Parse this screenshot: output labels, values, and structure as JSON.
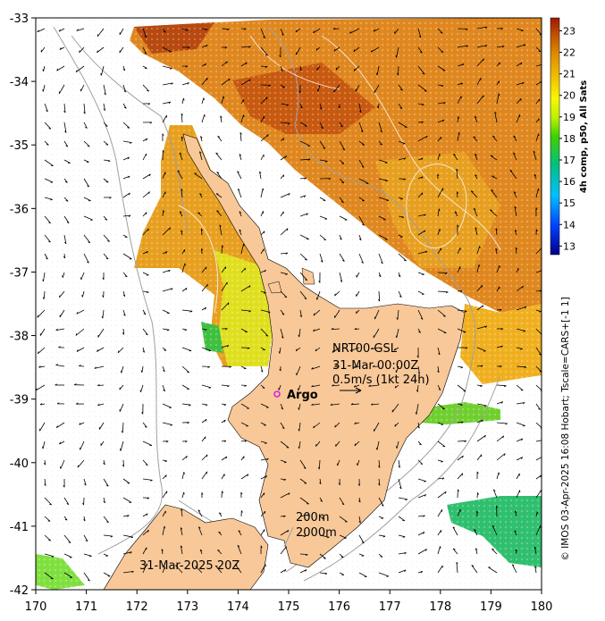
{
  "map": {
    "x_ticks": [
      "170",
      "171",
      "172",
      "173",
      "174",
      "175",
      "176",
      "177",
      "178",
      "179",
      "180"
    ],
    "y_ticks": [
      "-33",
      "-34",
      "-35",
      "-36",
      "-37",
      "-38",
      "-39",
      "-40",
      "-41",
      "-42"
    ],
    "lon_range": [
      170,
      180
    ],
    "lat_range": [
      -33,
      -42
    ],
    "bathymetry_labels": [
      "200m",
      "2000m"
    ],
    "product_label": [
      "NRT00 GSL",
      "31-Mar 00:00Z",
      "0.5m/s (1kt 24h)"
    ],
    "argo_label": "Argo",
    "argo_position": {
      "lon": 174.75,
      "lat": -38.9
    },
    "date_label": "31-Mar-2025 20Z",
    "colors": {
      "land": "#f8c898",
      "argo_marker": "#e020e0",
      "bathy_line": "#a0a0a0"
    }
  },
  "colorbar": {
    "ticks": [
      "13",
      "14",
      "15",
      "16",
      "17",
      "18",
      "19",
      "20",
      "21",
      "22",
      "23"
    ],
    "range": [
      12.6,
      23.6
    ],
    "label": "4h comp, p50, All Sats"
  },
  "credit": "© IMOS 03-Apr-2025 16:08 Hobart; Tscale=CARS+[-1 1]"
}
